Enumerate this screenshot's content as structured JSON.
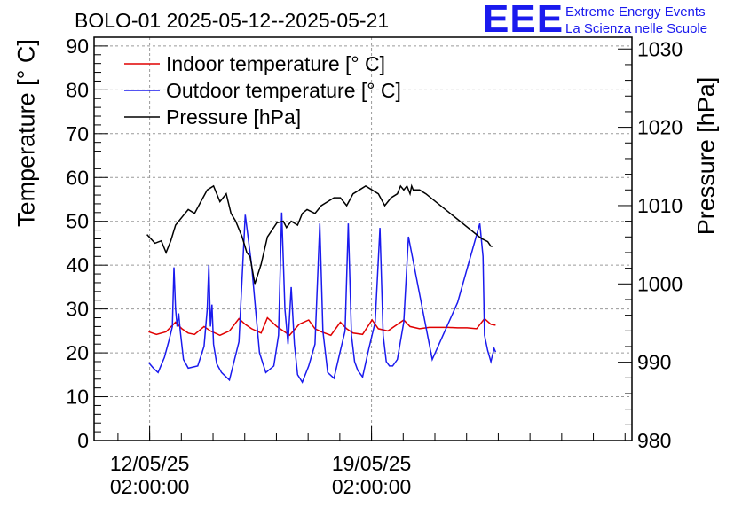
{
  "header": {
    "title": "BOLO-01 2025-05-12--2025-05-21",
    "logo_text": "EEE",
    "logo_line1": "Extreme Energy Events",
    "logo_line2": "La Scienza nelle Scuole"
  },
  "colors": {
    "indoor": "#e00000",
    "outdoor": "#1a1aee",
    "pressure": "#000000",
    "grid": "#9a9a9a",
    "logo": "#1a1aee"
  },
  "chart_data": {
    "type": "line",
    "title": "BOLO-01 2025-05-12--2025-05-21",
    "xlabel": "",
    "ylabel": "Temperature [° C]",
    "ylabel_right": "Pressure [hPa]",
    "ylim": [
      0,
      92
    ],
    "ylim_right": [
      980,
      1031.5
    ],
    "xlim": [
      10.33,
      27.3
    ],
    "x_unit": "days since 2025-05-12 (tick at 12.0833 = 12/05/25 02:00:00)",
    "yticks": [
      0,
      10,
      20,
      30,
      40,
      50,
      60,
      70,
      80,
      90
    ],
    "yticks_right": [
      980,
      990,
      1000,
      1010,
      1020,
      1030
    ],
    "xticks": [
      {
        "x": 12.0833,
        "line1": "12/05/25",
        "line2": "02:00:00"
      },
      {
        "x": 19.0833,
        "line1": "19/05/25",
        "line2": "02:00:00"
      }
    ],
    "grid": true,
    "legend_position": "top-left",
    "series": [
      {
        "name": "Indoor temperature [° C]",
        "axis": "left",
        "color": "#e00000",
        "x": [
          12.05,
          12.3,
          12.6,
          12.9,
          13.1,
          13.3,
          13.5,
          13.8,
          14.0,
          14.3,
          14.6,
          14.9,
          15.1,
          15.3,
          15.6,
          15.8,
          16.1,
          16.3,
          16.5,
          16.8,
          17.1,
          17.3,
          17.5,
          17.8,
          18.1,
          18.3,
          18.5,
          18.8,
          19.1,
          19.3,
          19.6,
          19.8,
          20.1,
          20.3,
          20.6,
          20.9,
          21.2,
          21.5,
          21.8,
          22.1,
          22.4,
          22.65,
          22.85,
          23.0
        ],
        "values": [
          24.8,
          24.2,
          24.8,
          27.0,
          25.5,
          24.5,
          24.2,
          26.0,
          25.0,
          24.0,
          25.0,
          27.8,
          26.5,
          25.5,
          24.5,
          28.0,
          26.0,
          25.0,
          24.0,
          26.5,
          27.5,
          25.5,
          24.8,
          24.0,
          27.0,
          25.5,
          24.5,
          24.2,
          27.5,
          25.5,
          25.0,
          26.0,
          27.5,
          26.0,
          25.5,
          25.8,
          25.8,
          25.8,
          25.7,
          25.7,
          25.5,
          27.8,
          26.5,
          26.3
        ]
      },
      {
        "name": "Outdoor temperature [° C]",
        "axis": "left",
        "color": "#1a1aee",
        "x": [
          12.05,
          12.2,
          12.35,
          12.55,
          12.7,
          12.8,
          12.85,
          12.9,
          12.95,
          13.0,
          13.05,
          13.15,
          13.3,
          13.6,
          13.8,
          13.9,
          13.95,
          14.0,
          14.05,
          14.1,
          14.2,
          14.35,
          14.6,
          14.9,
          15.1,
          15.3,
          15.45,
          15.55,
          15.75,
          16.0,
          16.15,
          16.25,
          16.35,
          16.45,
          16.55,
          16.65,
          16.75,
          16.9,
          17.1,
          17.3,
          17.45,
          17.55,
          17.7,
          17.9,
          18.1,
          18.25,
          18.35,
          18.45,
          18.55,
          18.65,
          18.8,
          19.0,
          19.2,
          19.35,
          19.45,
          19.55,
          19.65,
          19.75,
          19.9,
          20.1,
          20.25,
          21.0,
          21.8,
          22.5,
          22.6,
          22.65,
          22.75,
          22.85,
          22.95,
          23.0
        ],
        "values": [
          17.8,
          16.5,
          15.5,
          19.0,
          23.0,
          26.0,
          39.5,
          30.0,
          26.0,
          29.0,
          25.0,
          18.5,
          16.5,
          17.0,
          21.5,
          30.0,
          40.0,
          26.0,
          31.0,
          22.0,
          17.5,
          15.5,
          13.8,
          22.5,
          51.5,
          40.0,
          28.0,
          20.0,
          15.5,
          17.0,
          24.0,
          52.0,
          30.0,
          22.0,
          35.0,
          22.0,
          15.0,
          13.3,
          17.0,
          22.0,
          49.5,
          25.0,
          15.5,
          14.2,
          20.5,
          25.0,
          49.5,
          24.0,
          18.0,
          16.0,
          14.5,
          21.0,
          27.0,
          48.5,
          24.0,
          18.0,
          17.0,
          17.0,
          18.5,
          27.0,
          46.5,
          18.5,
          31.5,
          49.5,
          42.0,
          24.0,
          20.5,
          18.0,
          21.0,
          20.2
        ],
        "visible_labels": []
      },
      {
        "name": "Pressure [hPa]",
        "axis": "right",
        "color": "#000000",
        "x": [
          12.0,
          12.25,
          12.45,
          12.6,
          12.75,
          12.9,
          13.1,
          13.3,
          13.5,
          13.7,
          13.9,
          14.1,
          14.3,
          14.5,
          14.65,
          14.8,
          15.0,
          15.15,
          15.25,
          15.4,
          15.6,
          15.8,
          16.1,
          16.3,
          16.4,
          16.55,
          16.75,
          16.9,
          17.05,
          17.3,
          17.5,
          17.7,
          17.9,
          18.1,
          18.3,
          18.5,
          18.7,
          18.9,
          19.1,
          19.3,
          19.5,
          19.7,
          19.9,
          20.0,
          20.1,
          20.2,
          20.3,
          20.35,
          20.4,
          20.6,
          20.8,
          22.55,
          22.75,
          22.85,
          22.9
        ],
        "values": [
          1006.3,
          1005.2,
          1005.5,
          1004.0,
          1005.5,
          1007.5,
          1008.5,
          1009.5,
          1009.0,
          1010.5,
          1012.0,
          1012.5,
          1010.5,
          1011.5,
          1009.0,
          1008.0,
          1006.0,
          1004.0,
          1003.5,
          1000.0,
          1002.5,
          1006.0,
          1007.8,
          1008.0,
          1007.2,
          1008.0,
          1007.5,
          1009.0,
          1009.5,
          1009.0,
          1010.0,
          1010.5,
          1011.0,
          1011.0,
          1010.0,
          1011.5,
          1012.0,
          1012.5,
          1012.0,
          1011.5,
          1010.0,
          1011.0,
          1011.5,
          1012.5,
          1012.0,
          1012.5,
          1011.5,
          1012.5,
          1012.0,
          1012.0,
          1011.5,
          1005.8,
          1005.4,
          1004.8,
          1004.8
        ]
      }
    ]
  }
}
